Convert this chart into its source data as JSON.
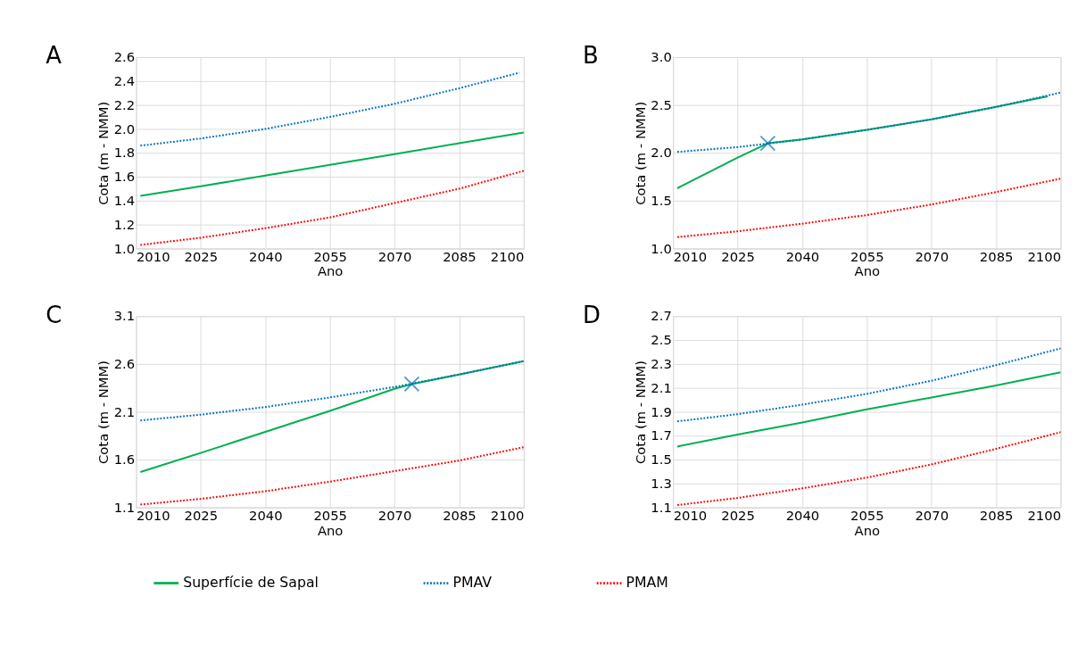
{
  "chart_data": [
    {
      "type": "line",
      "title": "A",
      "xlabel": "Ano",
      "ylabel": "Cota (m - NMM)",
      "xlim": [
        2010,
        2100
      ],
      "xticks": [
        2010,
        2025,
        2040,
        2055,
        2070,
        2085,
        2100
      ],
      "ylim": [
        1.0,
        2.6
      ],
      "yticks": [
        {
          "value": 1.0,
          "label": "1.0"
        },
        1.2,
        1.4,
        1.6,
        1.8,
        {
          "value": 2.0,
          "label": "2.0"
        },
        2.2,
        2.4,
        2.6
      ],
      "grid": true,
      "legend": "bottom",
      "series": [
        {
          "name": "Superfície de Sapal",
          "color": "#00b050",
          "line_style": "solid",
          "x": [
            2011,
            2025,
            2040,
            2055,
            2070,
            2085,
            2100
          ],
          "values": [
            1.44,
            1.52,
            1.61,
            1.7,
            1.79,
            1.88,
            1.97
          ]
        },
        {
          "name": "PMAV",
          "color": "#0070c0",
          "line_style": "dotted",
          "x": [
            2011,
            2025,
            2040,
            2055,
            2070,
            2085,
            2099
          ],
          "values": [
            1.86,
            1.92,
            2.0,
            2.1,
            2.21,
            2.34,
            2.47
          ]
        },
        {
          "name": "PMAM",
          "color": "#ff0000",
          "line_style": "dotted",
          "x": [
            2011,
            2025,
            2040,
            2055,
            2070,
            2085,
            2100
          ],
          "values": [
            1.03,
            1.09,
            1.17,
            1.26,
            1.38,
            1.5,
            1.65
          ]
        }
      ]
    },
    {
      "type": "line",
      "title": "B",
      "xlabel": "Ano",
      "ylabel": "Cota (m - NMM)",
      "xlim": [
        2010,
        2100
      ],
      "xticks": [
        2010,
        2025,
        2040,
        2055,
        2070,
        2085,
        2100
      ],
      "ylim": [
        1.0,
        3.0
      ],
      "yticks": [
        {
          "value": 1.0,
          "label": "1.0"
        },
        1.5,
        {
          "value": 2.0,
          "label": "2.0"
        },
        2.5,
        {
          "value": 3.0,
          "label": "3.0"
        }
      ],
      "grid": true,
      "legend": "bottom",
      "series": [
        {
          "name": "Superfície de Sapal",
          "color": "#00b050",
          "line_style": "solid",
          "x": [
            2011,
            2025,
            2032,
            2040,
            2055,
            2070,
            2085,
            2097
          ],
          "values": [
            1.63,
            1.95,
            2.1,
            2.14,
            2.24,
            2.35,
            2.48,
            2.59
          ]
        },
        {
          "name": "PMAV",
          "color": "#0070c0",
          "line_style": "dotted",
          "x": [
            2011,
            2025,
            2040,
            2055,
            2070,
            2085,
            2100
          ],
          "values": [
            2.01,
            2.06,
            2.14,
            2.24,
            2.35,
            2.48,
            2.63
          ]
        },
        {
          "name": "PMAM",
          "color": "#ff0000",
          "line_style": "dotted",
          "x": [
            2011,
            2025,
            2040,
            2055,
            2070,
            2085,
            2100
          ],
          "values": [
            1.12,
            1.18,
            1.26,
            1.35,
            1.46,
            1.59,
            1.73
          ]
        },
        {
          "type": "scatter",
          "marker": "cross",
          "color": "#0070c0",
          "x": [
            2032
          ],
          "values": [
            2.1
          ]
        }
      ]
    },
    {
      "type": "line",
      "title": "C",
      "xlabel": "Ano",
      "ylabel": "Cota (m - NMM)",
      "xlim": [
        2010,
        2100
      ],
      "xticks": [
        2010,
        2025,
        2040,
        2055,
        2070,
        2085,
        2100
      ],
      "ylim": [
        1.1,
        3.1
      ],
      "yticks": [
        1.1,
        1.6,
        2.1,
        2.6,
        3.1
      ],
      "grid": true,
      "legend": "bottom",
      "series": [
        {
          "name": "Superfície de Sapal",
          "color": "#00b050",
          "line_style": "solid",
          "x": [
            2011,
            2025,
            2040,
            2055,
            2070,
            2074,
            2085,
            2100
          ],
          "values": [
            1.47,
            1.67,
            1.89,
            2.11,
            2.34,
            2.39,
            2.49,
            2.63
          ]
        },
        {
          "name": "PMAV",
          "color": "#0070c0",
          "line_style": "dotted",
          "x": [
            2011,
            2025,
            2040,
            2055,
            2070,
            2085,
            2100
          ],
          "values": [
            2.01,
            2.07,
            2.15,
            2.25,
            2.36,
            2.49,
            2.63
          ]
        },
        {
          "name": "PMAM",
          "color": "#ff0000",
          "line_style": "dotted",
          "x": [
            2011,
            2025,
            2040,
            2055,
            2070,
            2085,
            2100
          ],
          "values": [
            1.13,
            1.19,
            1.27,
            1.37,
            1.48,
            1.59,
            1.73
          ]
        },
        {
          "type": "scatter",
          "marker": "cross",
          "color": "#0070c0",
          "x": [
            2074
          ],
          "values": [
            2.39
          ]
        }
      ]
    },
    {
      "type": "line",
      "title": "D",
      "xlabel": "Ano",
      "ylabel": "Cota (m - NMM)",
      "xlim": [
        2010,
        2100
      ],
      "xticks": [
        2010,
        2025,
        2040,
        2055,
        2070,
        2085,
        2100
      ],
      "ylim": [
        1.1,
        2.7
      ],
      "yticks": [
        1.1,
        1.3,
        1.5,
        1.7,
        1.9,
        2.1,
        2.3,
        2.5,
        2.7
      ],
      "grid": true,
      "legend": "bottom",
      "series": [
        {
          "name": "Superfície de Sapal",
          "color": "#00b050",
          "line_style": "solid",
          "x": [
            2011,
            2025,
            2040,
            2055,
            2070,
            2085,
            2100
          ],
          "values": [
            1.61,
            1.71,
            1.81,
            1.92,
            2.02,
            2.12,
            2.23
          ]
        },
        {
          "name": "PMAV",
          "color": "#0070c0",
          "line_style": "dotted",
          "x": [
            2011,
            2025,
            2040,
            2055,
            2070,
            2085,
            2100
          ],
          "values": [
            1.82,
            1.88,
            1.96,
            2.05,
            2.16,
            2.29,
            2.43
          ]
        },
        {
          "name": "PMAM",
          "color": "#ff0000",
          "line_style": "dotted",
          "x": [
            2011,
            2025,
            2040,
            2055,
            2070,
            2085,
            2100
          ],
          "values": [
            1.12,
            1.18,
            1.26,
            1.35,
            1.46,
            1.59,
            1.73
          ]
        }
      ]
    }
  ]
}
